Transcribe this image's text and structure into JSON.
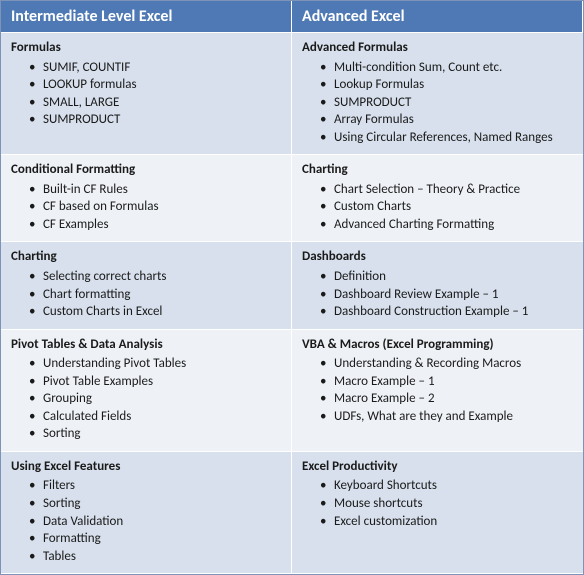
{
  "colors": {
    "header_bg": "#4f79b4",
    "header_fg": "#ffffff",
    "row_a": "#d7e0ec",
    "row_b": "#eef2f7",
    "border": "#7d94b8",
    "text": "#1a1a1a"
  },
  "columns": [
    {
      "header": "Intermediate Level Excel"
    },
    {
      "header": "Advanced Excel"
    }
  ],
  "rows": [
    {
      "shade": "a",
      "left": {
        "title": "Formulas",
        "items": [
          "SUMIF, COUNTIF",
          "LOOKUP formulas",
          "SMALL,  LARGE",
          "SUMPRODUCT"
        ]
      },
      "right": {
        "title": "Advanced Formulas",
        "items": [
          "Multi-condition Sum, Count etc.",
          "Lookup Formulas",
          "SUMPRODUCT",
          "Array Formulas",
          "Using Circular References, Named Ranges"
        ]
      }
    },
    {
      "shade": "b",
      "left": {
        "title": "Conditional Formatting",
        "items": [
          "Built-in CF Rules",
          "CF based on Formulas",
          "CF Examples"
        ]
      },
      "right": {
        "title": "Charting",
        "items": [
          "Chart Selection – Theory & Practice",
          "Custom Charts",
          "Advanced Charting Formatting"
        ]
      }
    },
    {
      "shade": "a",
      "left": {
        "title": "Charting",
        "items": [
          "Selecting correct charts",
          "Chart formatting",
          "Custom Charts in Excel"
        ]
      },
      "right": {
        "title": "Dashboards",
        "items": [
          "Definition",
          "Dashboard Review Example – 1",
          "Dashboard Construction Example – 1"
        ]
      }
    },
    {
      "shade": "b",
      "left": {
        "title": "Pivot Tables & Data Analysis",
        "items": [
          "Understanding Pivot Tables",
          "Pivot Table Examples",
          "Grouping",
          "Calculated Fields",
          "Sorting"
        ]
      },
      "right": {
        "title": "VBA & Macros (Excel Programming)",
        "items": [
          "Understanding & Recording Macros",
          "Macro Example – 1",
          "Macro Example – 2",
          "UDFs, What are they and Example"
        ]
      }
    },
    {
      "shade": "a",
      "left": {
        "title": "Using Excel Features",
        "items": [
          "Filters",
          "Sorting",
          "Data Validation",
          "Formatting",
          "Tables"
        ]
      },
      "right": {
        "title": "Excel Productivity",
        "items": [
          "Keyboard Shortcuts",
          "Mouse shortcuts",
          "Excel customization"
        ]
      }
    }
  ]
}
